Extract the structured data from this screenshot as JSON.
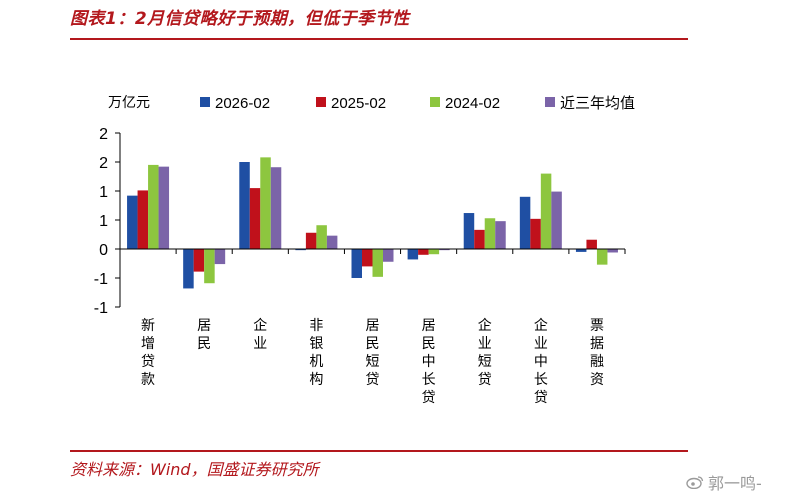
{
  "header": {
    "title": "图表1：2月信贷略好于预期，但低于季节性"
  },
  "footer": {
    "source": "资料来源：Wind，国盛证券研究所",
    "watermark": "郭一鸣-"
  },
  "colors": {
    "accent": "#b3181d",
    "series": [
      "#1f4fa3",
      "#c0111b",
      "#8dc63f",
      "#7b64a8"
    ]
  },
  "chart_data": {
    "type": "bar",
    "unit": "万亿元",
    "categories": [
      "新增贷款",
      "居民",
      "企业",
      "非银机构",
      "居民短贷",
      "居民中长贷",
      "企业短贷",
      "企业中长贷",
      "票据融资"
    ],
    "series": [
      {
        "name": "2026-02",
        "values": [
          0.92,
          -0.68,
          1.5,
          -0.02,
          -0.5,
          -0.18,
          0.62,
          0.9,
          -0.05
        ]
      },
      {
        "name": "2025-02",
        "values": [
          1.01,
          -0.39,
          1.05,
          0.28,
          -0.3,
          -0.1,
          0.33,
          0.52,
          0.16
        ]
      },
      {
        "name": "2024-02",
        "values": [
          1.45,
          -0.59,
          1.58,
          0.41,
          -0.48,
          -0.09,
          0.53,
          1.3,
          -0.27
        ]
      },
      {
        "name": "近三年均值",
        "values": [
          1.42,
          -0.26,
          1.41,
          0.23,
          -0.22,
          -0.02,
          0.48,
          0.99,
          -0.06
        ]
      }
    ],
    "ylim": [
      -1,
      2
    ],
    "yticks": [
      2,
      1.5,
      1,
      0.5,
      0,
      -0.5,
      -1
    ],
    "ytick_labels": [
      "2",
      "2",
      "1",
      "1",
      "0",
      "-1",
      "-1"
    ],
    "legend_position": "top",
    "grid": false
  }
}
